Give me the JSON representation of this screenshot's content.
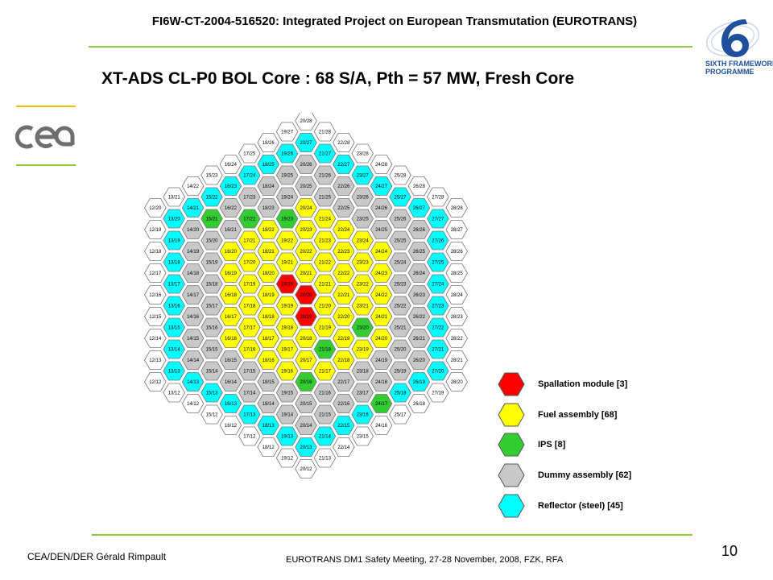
{
  "header": {
    "project_title": "FI6W-CT-2004-516520: Integrated Project on European Transmutation (EUROTRANS)",
    "logo_line1": "SIXTH FRAMEWORK",
    "logo_line2": "PROGRAMME",
    "logo_icon": "fp6-logo-icon"
  },
  "title": "XT-ADS CL-P0 BOL Core : 68 S/A, Pth = 57 MW, Fresh Core",
  "logos": {
    "left_icon": "cea-logo-icon"
  },
  "colors": {
    "spallation": "#ff0000",
    "fuel": "#ffff00",
    "ips": "#33cc33",
    "dummy": "#c8c8c8",
    "reflector": "#00ffff",
    "outer": "#ffffff",
    "accent": "#8fc73e"
  },
  "legend": [
    {
      "type": "spallation",
      "label": "Spallation module [3]"
    },
    {
      "type": "fuel",
      "label": "Fuel assembly [68]"
    },
    {
      "type": "ips",
      "label": "IPS [8]"
    },
    {
      "type": "dummy",
      "label": "Dummy assembly [62]"
    },
    {
      "type": "reflector",
      "label": "Reflector (steel) [45]"
    }
  ],
  "core": {
    "center": {
      "i": 20,
      "j": 20
    },
    "radius": 8,
    "spallation": [
      "19/20",
      "20/20",
      "20/19"
    ],
    "ips": [
      "16/25",
      "15/21",
      "17/22",
      "19/23",
      "20/16",
      "21/18",
      "23/20",
      "24/17"
    ],
    "dummy_rings": [
      5,
      6
    ],
    "fuel_rings": [
      1,
      2,
      3,
      4
    ],
    "reflector_ring": 7,
    "outer_ring": 8
  },
  "footer": {
    "author": "CEA/DEN/DER  Gérald Rimpault",
    "meeting": "EUROTRANS  DM1 Safety Meeting, 27-28 November, 2008, FZK, RFA",
    "page": "10"
  }
}
